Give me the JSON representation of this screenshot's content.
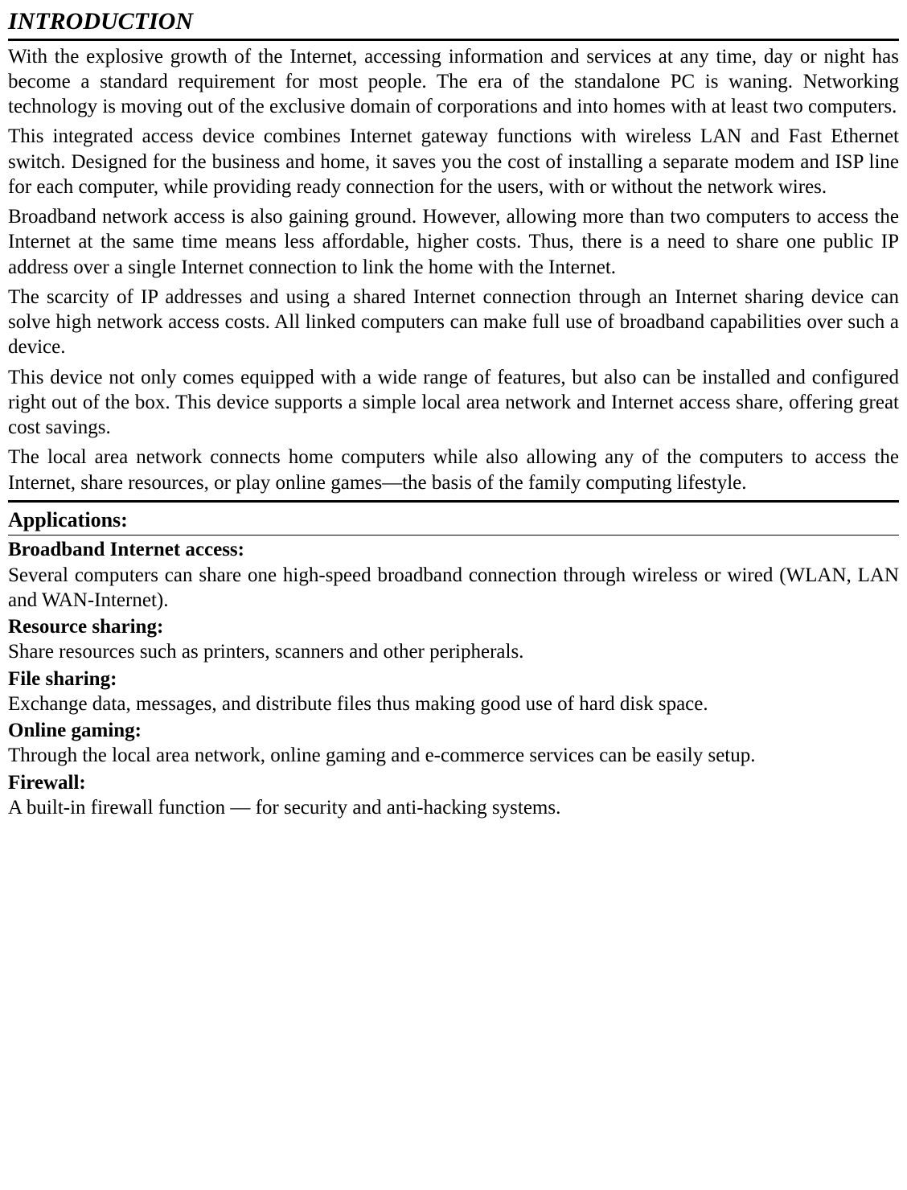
{
  "title": "INTRODUCTION",
  "paragraphs": {
    "p1": "With the explosive growth of the Internet, accessing information and services at any time, day or night has become a standard requirement for most people. The era of the standalone PC is waning. Networking technology is moving out of the exclusive domain of corporations and into homes with at least two computers.",
    "p2": "This integrated access device combines Internet gateway functions with wireless LAN and Fast Ethernet switch. Designed for the business and home, it saves you the cost of installing a separate modem and ISP line for each computer, while providing ready connection for the users, with or without the network wires.",
    "p3": "Broadband network access is also gaining ground. However, allowing more than two computers to access the Internet at the same time means less affordable, higher costs. Thus, there is a need to share one public IP address over a single Internet connection to link the home with the Internet.",
    "p4": "The scarcity of IP addresses and using a shared Internet connection through an Internet sharing device can solve high network access costs. All linked computers can make full use of broadband capabilities over such a device.",
    "p5": "This device not only comes equipped with a wide range of features, but also can be installed and configured right out of the box. This device supports a simple local area network and Internet access share, offering great cost savings.",
    "p6": "The local area network connects home computers while also allowing any of the computers to access the Internet, share resources, or play online games—the basis of the family computing lifestyle."
  },
  "applications": {
    "heading": "Applications:",
    "items": [
      {
        "label": "Broadband Internet access:",
        "desc": "Several computers can share one high-speed broadband connection through wireless or wired (WLAN, LAN and WAN-Internet)."
      },
      {
        "label": "Resource sharing:",
        "desc": "Share resources such as printers, scanners and other peripherals."
      },
      {
        "label": "File sharing:",
        "desc": "Exchange data, messages, and distribute files thus making good use of hard disk space."
      },
      {
        "label": "Online gaming:",
        "desc": "Through the local area network, online gaming and e-commerce services can be easily setup."
      },
      {
        "label": "Firewall:",
        "desc": "A built-in firewall function — for security and anti-hacking systems."
      }
    ]
  },
  "colors": {
    "text": "#000000",
    "background": "#ffffff",
    "rule": "#000000"
  },
  "typography": {
    "font_family": "Times New Roman",
    "body_fontsize": 25,
    "title_fontsize": 30,
    "title_style": "italic bold",
    "subheading_fontsize": 26,
    "subheading_weight": "bold",
    "label_weight": "bold"
  }
}
